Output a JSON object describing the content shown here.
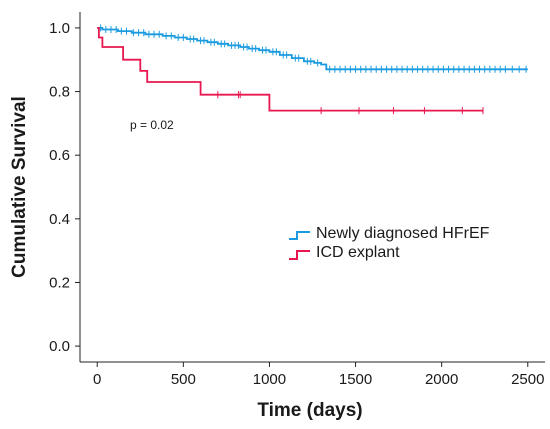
{
  "chart_data": {
    "type": "line",
    "title": "",
    "xlabel": "Time (days)",
    "ylabel": "Cumulative Survival",
    "xlim": [
      -100,
      2600
    ],
    "ylim": [
      -0.05,
      1.05
    ],
    "xticks": [
      0,
      500,
      1000,
      1500,
      2000,
      2500
    ],
    "xtick_labels": [
      "0",
      "500",
      "1000",
      "1500",
      "2000",
      "2500"
    ],
    "yticks": [
      0.0,
      0.2,
      0.4,
      0.6,
      0.8,
      1.0
    ],
    "ytick_labels": [
      "0.0",
      "0.2",
      "0.4",
      "0.6",
      "0.8",
      "1.0"
    ],
    "grid": false,
    "legend_position": "center-right",
    "annotations": [
      {
        "text": "p = 0.02",
        "x": 200,
        "y": 0.7
      }
    ],
    "series": [
      {
        "name": "Newly diagnosed HFrEF",
        "color": "#1a9be0",
        "step": [
          [
            0,
            1.0
          ],
          [
            30,
            0.995
          ],
          [
            120,
            0.99
          ],
          [
            200,
            0.985
          ],
          [
            280,
            0.98
          ],
          [
            380,
            0.975
          ],
          [
            450,
            0.97
          ],
          [
            520,
            0.965
          ],
          [
            580,
            0.96
          ],
          [
            640,
            0.955
          ],
          [
            700,
            0.95
          ],
          [
            760,
            0.945
          ],
          [
            830,
            0.94
          ],
          [
            880,
            0.935
          ],
          [
            940,
            0.93
          ],
          [
            1000,
            0.925
          ],
          [
            1060,
            0.915
          ],
          [
            1130,
            0.905
          ],
          [
            1200,
            0.895
          ],
          [
            1260,
            0.89
          ],
          [
            1300,
            0.885
          ],
          [
            1330,
            0.87
          ],
          [
            2500,
            0.87
          ]
        ],
        "censor_x": [
          20,
          50,
          80,
          110,
          140,
          170,
          210,
          240,
          270,
          300,
          330,
          360,
          400,
          430,
          470,
          500,
          540,
          560,
          600,
          620,
          660,
          680,
          720,
          740,
          780,
          800,
          820,
          850,
          870,
          900,
          920,
          960,
          980,
          1020,
          1040,
          1080,
          1100,
          1150,
          1170,
          1220,
          1240,
          1280,
          1350,
          1380,
          1410,
          1440,
          1470,
          1500,
          1530,
          1560,
          1590,
          1620,
          1650,
          1680,
          1710,
          1740,
          1770,
          1800,
          1830,
          1860,
          1890,
          1920,
          1950,
          1980,
          2010,
          2040,
          2070,
          2100,
          2130,
          2160,
          2190,
          2220,
          2250,
          2280,
          2310,
          2340,
          2370,
          2410,
          2450,
          2490
        ]
      },
      {
        "name": "ICD explant",
        "color": "#e8174f",
        "step": [
          [
            0,
            1.0
          ],
          [
            10,
            0.97
          ],
          [
            30,
            0.94
          ],
          [
            150,
            0.9
          ],
          [
            250,
            0.865
          ],
          [
            290,
            0.83
          ],
          [
            600,
            0.79
          ],
          [
            1000,
            0.74
          ],
          [
            2240,
            0.74
          ]
        ],
        "censor_x": [
          700,
          820,
          830,
          1300,
          1520,
          1720,
          1900,
          2120,
          2240
        ]
      }
    ]
  }
}
